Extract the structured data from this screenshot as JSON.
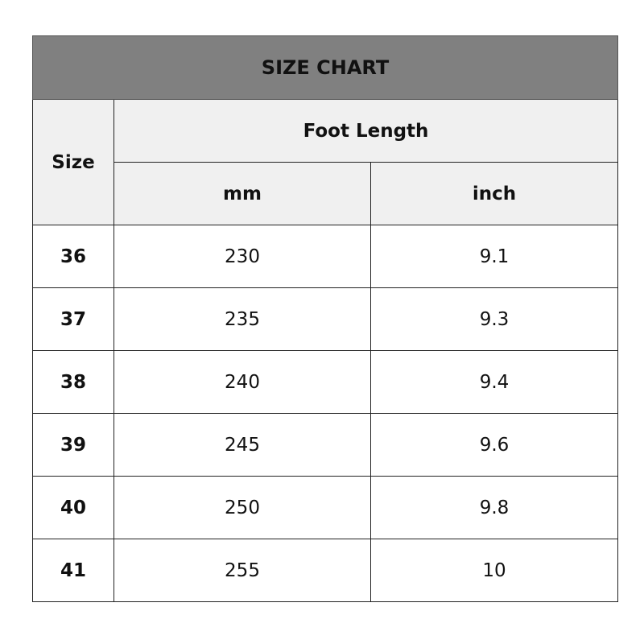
{
  "title": "SIZE CHART",
  "headers": {
    "size": "Size",
    "group": "Foot Length",
    "mm": "mm",
    "inch": "inch"
  },
  "rows": [
    {
      "size": "36",
      "mm": "230",
      "inch": "9.1"
    },
    {
      "size": "37",
      "mm": "235",
      "inch": "9.3"
    },
    {
      "size": "38",
      "mm": "240",
      "inch": "9.4"
    },
    {
      "size": "39",
      "mm": "245",
      "inch": "9.6"
    },
    {
      "size": "40",
      "mm": "250",
      "inch": "9.8"
    },
    {
      "size": "41",
      "mm": "255",
      "inch": "10"
    }
  ]
}
